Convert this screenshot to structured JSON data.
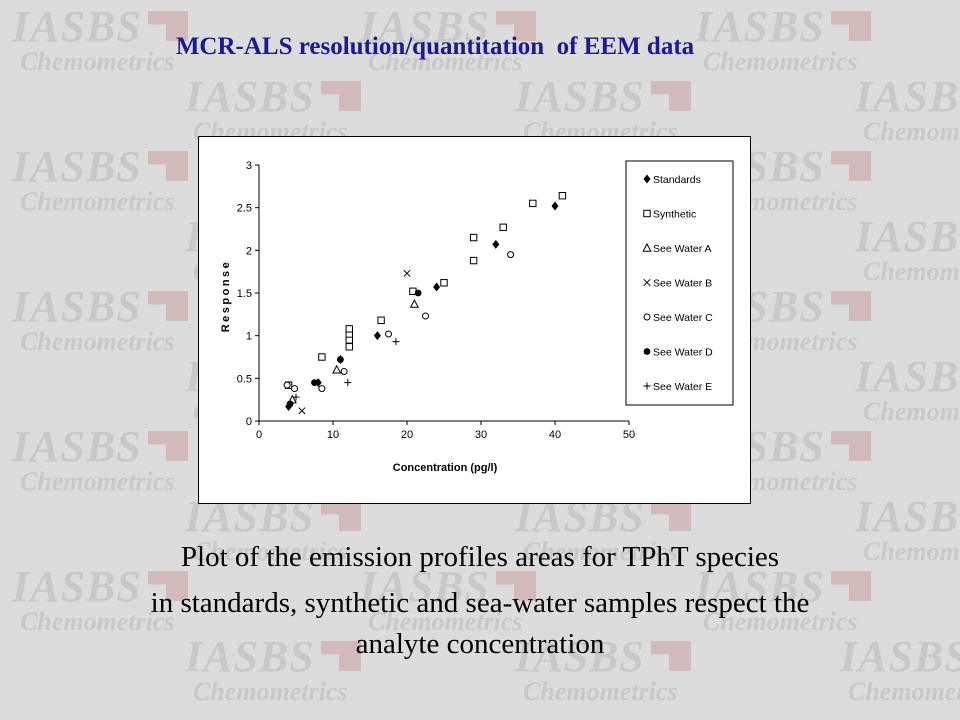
{
  "title": "MCR-ALS resolution/quantitation  of EEM data",
  "watermark": {
    "line1": "IASBS",
    "line2": "Chemometrics",
    "color": "#c8c8c8"
  },
  "caption": {
    "line1": "Plot of the emission profiles areas for TPhT species",
    "line2": "in standards, synthetic and sea-water samples respect the",
    "line3": "analyte concentration"
  },
  "colors": {
    "title": "#1a1a99",
    "background": "#dcdcdc",
    "markers": "#000000"
  },
  "chart_data": {
    "type": "scatter",
    "xlabel": "Concentration (pg/l)",
    "ylabel": "Response",
    "xlim": [
      0,
      50
    ],
    "ylim": [
      0,
      3
    ],
    "xticks": [
      "0",
      "10",
      "20",
      "30",
      "40",
      "50"
    ],
    "yticks": [
      "0",
      "0.5",
      "1",
      "1.5",
      "2",
      "2.5",
      "3"
    ],
    "grid": false,
    "legend_position": "right",
    "series": [
      {
        "name": "Standards",
        "marker": "diamond-filled",
        "points": [
          [
            4,
            0.17
          ],
          [
            8,
            0.45
          ],
          [
            11,
            0.72
          ],
          [
            16,
            1.0
          ],
          [
            24,
            1.57
          ],
          [
            32,
            2.07
          ],
          [
            40,
            2.52
          ]
        ]
      },
      {
        "name": "Synthetic",
        "marker": "square-open",
        "points": [
          [
            4,
            0.42
          ],
          [
            8.5,
            0.75
          ],
          [
            12.2,
            0.87
          ],
          [
            12.2,
            0.95
          ],
          [
            12.2,
            1.02
          ],
          [
            12.2,
            1.08
          ],
          [
            16.5,
            1.18
          ],
          [
            20.8,
            1.52
          ],
          [
            25,
            1.62
          ],
          [
            29,
            1.88
          ],
          [
            29,
            2.15
          ],
          [
            33,
            2.27
          ],
          [
            37,
            2.55
          ],
          [
            41,
            2.64
          ]
        ]
      },
      {
        "name": "See Water A",
        "marker": "triangle-open",
        "points": [
          [
            4.5,
            0.25
          ],
          [
            10.5,
            0.6
          ],
          [
            21,
            1.37
          ]
        ]
      },
      {
        "name": "See Water B",
        "marker": "x",
        "points": [
          [
            5.8,
            0.12
          ],
          [
            20,
            1.73
          ]
        ]
      },
      {
        "name": "See Water C",
        "marker": "circle-open",
        "points": [
          [
            3.8,
            0.42
          ],
          [
            4.8,
            0.38
          ],
          [
            8.5,
            0.38
          ],
          [
            11.5,
            0.58
          ],
          [
            17.5,
            1.02
          ],
          [
            22.5,
            1.23
          ],
          [
            34,
            1.95
          ]
        ]
      },
      {
        "name": "See Water D",
        "marker": "circle-filled",
        "points": [
          [
            4.2,
            0.2
          ],
          [
            7.5,
            0.45
          ],
          [
            11,
            0.72
          ],
          [
            21.5,
            1.5
          ]
        ]
      },
      {
        "name": "See Water E",
        "marker": "plus",
        "points": [
          [
            5,
            0.28
          ],
          [
            12,
            0.45
          ],
          [
            18.5,
            0.93
          ]
        ]
      }
    ]
  }
}
